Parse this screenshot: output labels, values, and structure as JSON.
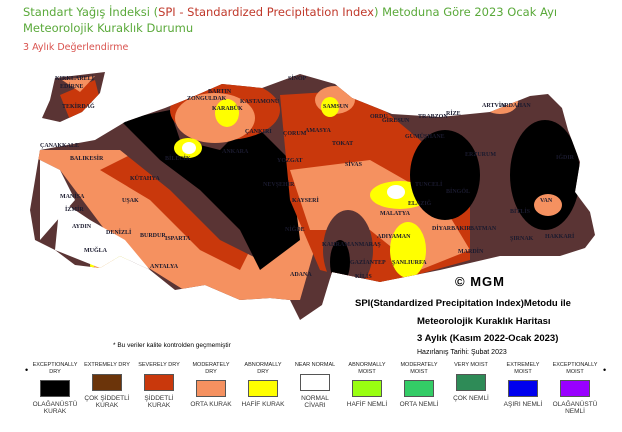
{
  "header": {
    "title_part1": "Standart Yağış İndeksi (",
    "title_red": "SPI - Standardized Precipitation Index",
    "title_part2": ") Metoduna Göre 2023 Ocak Ayı Meteorolojik Kuraklık Durumu",
    "subtitle": "3 Aylık Değerlendirme"
  },
  "map": {
    "copyright": "© MGM",
    "info_line1": "SPI(Standardized Precipitation Index)Metodu ile",
    "info_line2": "Meteorolojik Kuraklık Haritası",
    "info_line3": "3 Aylık (Kasım 2022-Ocak 2023)",
    "prepared": "Hazırlanış Tarihi: Şubat 2023",
    "note": "* Bu veriler kalite kontrolden geçmemiştir",
    "cities": [
      "KIRKLARELİ",
      "EDİRNE",
      "TEKİRDAĞ",
      "ÇANAKKALE",
      "BALIKESİR",
      "MANİSA",
      "İZMİR",
      "AYDIN",
      "DENİZLİ",
      "MUĞLA",
      "UŞAK",
      "KÜTAHYA",
      "BURDUR",
      "ISPARTA",
      "ANTALYA",
      "BİLECİK",
      "ANKARA",
      "BARTIN",
      "ZONGULDAK",
      "KARABÜK",
      "KASTAMONU",
      "ÇANKIRI",
      "ÇORUM",
      "YOZGAT",
      "NEVŞEHİR",
      "KAYSERİ",
      "NİĞDE",
      "ADANA",
      "SİNOP",
      "SAMSUN",
      "AMASYA",
      "TOKAT",
      "SİVAS",
      "ORDU",
      "GİRESUN",
      "TRABZON",
      "RİZE",
      "ARTVİN",
      "ARDAHAN",
      "GÜMÜŞHANE",
      "ERZURUM",
      "IĞDIR",
      "TUNCELİ",
      "BİNGÖL",
      "ELAZIĞ",
      "MALATYA",
      "ADIYAMAN",
      "KAHRAMANMARAŞ",
      "GAZİANTEP",
      "ŞANLIURFA",
      "DİYARBAKIR",
      "BATMAN",
      "MARDİN",
      "ŞIRNAK",
      "HAKKARİ",
      "VAN",
      "BİTLİS",
      "KİLİS"
    ]
  },
  "legend": [
    {
      "en": "EXCEPTIONALLY DRY",
      "tr": "OLAĞANÜSTÜ KURAK",
      "color": "#000000"
    },
    {
      "en": "EXTREMELY DRY",
      "tr": "ÇOK ŞİDDETLİ KURAK",
      "color": "#6b340a"
    },
    {
      "en": "SEVERELY DRY",
      "tr": "ŞİDDETLİ KURAK",
      "color": "#c9380c"
    },
    {
      "en": "MODERATELY DRY",
      "tr": "ORTA KURAK",
      "color": "#f59160"
    },
    {
      "en": "ABNORMALLY DRY",
      "tr": "HAFİF KURAK",
      "color": "#ffff00"
    },
    {
      "en": "NEAR NORMAL",
      "tr": "NORMAL CİVARI",
      "color": "#ffffff"
    },
    {
      "en": "ABNORMALLY MOIST",
      "tr": "HAFİF NEMLİ",
      "color": "#99ff11"
    },
    {
      "en": "MODERATELY MOIST",
      "tr": "ORTA NEMLİ",
      "color": "#33cc66"
    },
    {
      "en": "VERY MOIST",
      "tr": "ÇOK NEMLİ",
      "color": "#2e8b57"
    },
    {
      "en": "EXTREMELY MOIST",
      "tr": "AŞIRI NEMLİ",
      "color": "#0000ee"
    },
    {
      "en": "EXCEPTIONALLY MOIST",
      "tr": "OLAĞANÜSTÜ NEMLİ",
      "color": "#9900ff"
    }
  ]
}
